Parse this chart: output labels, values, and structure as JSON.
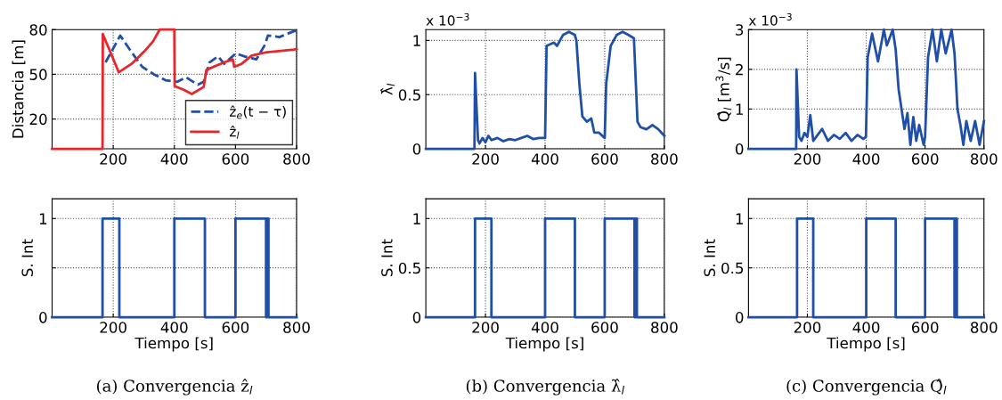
{
  "chart_data": [
    {
      "type": "line",
      "ylabel": "Distancia [m]",
      "xlim": [
        0,
        800
      ],
      "ylim": [
        0,
        80
      ],
      "xticks": [
        200,
        400,
        600,
        800
      ],
      "yticks": [
        20,
        50,
        80
      ],
      "grid": true,
      "legend": "bottom right",
      "series": [
        {
          "name": "ẑ$_{e}$(t − τ)",
          "color": "#1f4fa8",
          "line_style": "dashed",
          "x": [
            175,
            223,
            256,
            295,
            333,
            371,
            410,
            438,
            477,
            496,
            515,
            543,
            563,
            601,
            630,
            668,
            697,
            706,
            744,
            792,
            800
          ],
          "values": [
            58,
            76,
            66,
            55,
            50,
            46,
            45,
            48,
            43,
            45,
            58,
            62,
            57,
            64,
            62,
            60,
            70,
            76,
            75,
            79,
            79
          ]
        },
        {
          "name": "ẑ$_{l}$",
          "color": "#e8262a",
          "line_style": "solid",
          "x": [
            0,
            165,
            166,
            218,
            260,
            300,
            330,
            352,
            400,
            401,
            429,
            457,
            496,
            505,
            563,
            591,
            596,
            620,
            653,
            697,
            792,
            800
          ],
          "values": [
            0,
            0,
            77,
            51.4,
            57,
            65,
            72,
            80,
            80,
            42,
            39.8,
            36.8,
            41.5,
            53,
            58,
            60,
            55,
            57,
            62.6,
            64.6,
            66.6,
            67
          ]
        }
      ]
    },
    {
      "type": "line",
      "ylabel": "λ̂$_{l}$",
      "annotations": [
        "x 10$^{−3}$"
      ],
      "xlim": [
        0,
        800
      ],
      "ylim": [
        0,
        1.1
      ],
      "xticks": [
        200,
        400,
        600,
        800
      ],
      "yticks": [
        0,
        0.5,
        1
      ],
      "grid": true,
      "series": [
        {
          "color": "#1f4fa8",
          "x": [
            0,
            163,
            165,
            175,
            180,
            190,
            200,
            210,
            220,
            240,
            260,
            280,
            300,
            320,
            340,
            360,
            380,
            398,
            400,
            405,
            430,
            440,
            460,
            480,
            500,
            505,
            515,
            525,
            540,
            555,
            565,
            580,
            600,
            605,
            620,
            640,
            660,
            680,
            698,
            710,
            720,
            740,
            760,
            780,
            800
          ],
          "values": [
            0,
            0,
            0.7,
            0.08,
            0.05,
            0.1,
            0.06,
            0.12,
            0.08,
            0.1,
            0.07,
            0.09,
            0.08,
            0.1,
            0.12,
            0.09,
            0.1,
            0.1,
            0.1,
            0.95,
            0.98,
            0.95,
            1.05,
            1.08,
            1.05,
            1.0,
            0.6,
            0.3,
            0.25,
            0.28,
            0.15,
            0.15,
            0.1,
            0.6,
            0.95,
            1.05,
            1.08,
            1.05,
            1.02,
            0.25,
            0.2,
            0.18,
            0.22,
            0.18,
            0.12
          ]
        }
      ]
    },
    {
      "type": "line",
      "ylabel": "Q̂$_{l}$ [m$^{3}$/s]",
      "annotations": [
        "x 10$^{−3}$"
      ],
      "xlim": [
        0,
        800
      ],
      "ylim": [
        0,
        3
      ],
      "xticks": [
        200,
        400,
        600,
        800
      ],
      "yticks": [
        0,
        1,
        2,
        3
      ],
      "grid": true,
      "series": [
        {
          "color": "#1f4fa8",
          "x": [
            0,
            162,
            163,
            172,
            180,
            190,
            200,
            210,
            220,
            230,
            250,
            270,
            290,
            310,
            330,
            350,
            370,
            390,
            399,
            405,
            420,
            440,
            460,
            470,
            490,
            500,
            510,
            520,
            530,
            540,
            550,
            560,
            570,
            580,
            595,
            600,
            610,
            625,
            640,
            655,
            670,
            690,
            700,
            710,
            720,
            730,
            740,
            755,
            770,
            785,
            800
          ],
          "values": [
            0,
            0,
            2.0,
            0.3,
            0.2,
            0.4,
            0.3,
            0.85,
            0.2,
            0.3,
            0.5,
            0.2,
            0.35,
            0.25,
            0.4,
            0.2,
            0.35,
            0.25,
            0.3,
            2.3,
            2.9,
            2.2,
            3.0,
            2.6,
            3.0,
            2.5,
            1.5,
            1.0,
            0.5,
            0.9,
            0.1,
            0.8,
            0.2,
            0.6,
            0.1,
            0.3,
            2.3,
            3.0,
            2.2,
            3.0,
            2.4,
            3.0,
            2.4,
            1.0,
            0.6,
            0.1,
            0.7,
            0.2,
            0.7,
            0.1,
            0.7
          ]
        }
      ]
    },
    {
      "type": "step",
      "ylabel": "S. Int",
      "xlabel": "Tiempo [s]",
      "annotations": [
        "(a) Convergencia ẑ$_{l}$"
      ],
      "xlim": [
        0,
        800
      ],
      "ylim": [
        0,
        1.2
      ],
      "xticks": [
        200,
        400,
        600,
        800
      ],
      "yticks": [
        0,
        {
          "value": 0.5,
          "label": null
        },
        1
      ],
      "grid": true,
      "series": [
        {
          "color": "#1f4fa8",
          "x": [
            0,
            165,
            220,
            400,
            500,
            600,
            700,
            703,
            708,
            800
          ],
          "values": [
            0,
            1,
            0,
            1,
            0,
            1,
            0,
            1,
            0,
            0
          ]
        }
      ]
    },
    {
      "type": "step",
      "ylabel": "S. Int",
      "xlabel": "Tiempo [s]",
      "annotations": [
        "(b) Convergencia λ̂$_{l}$"
      ],
      "xlim": [
        0,
        800
      ],
      "ylim": [
        0,
        1.2
      ],
      "xticks": [
        200,
        400,
        600,
        800
      ],
      "yticks": [
        0,
        0.5,
        1
      ],
      "grid": true,
      "series": [
        {
          "color": "#1f4fa8",
          "x": [
            0,
            165,
            220,
            400,
            500,
            600,
            700,
            703,
            708,
            800
          ],
          "values": [
            0,
            1,
            0,
            1,
            0,
            1,
            0,
            1,
            0,
            0
          ]
        }
      ]
    },
    {
      "type": "step",
      "ylabel": "S. Int",
      "xlabel": "Tiempo [s]",
      "annotations": [
        "(c) Convergencia Q̂$_{l}$"
      ],
      "xlim": [
        0,
        800
      ],
      "ylim": [
        0,
        1.2
      ],
      "xticks": [
        200,
        400,
        600,
        800
      ],
      "yticks": [
        0,
        0.5,
        1
      ],
      "grid": true,
      "series": [
        {
          "color": "#1f4fa8",
          "x": [
            0,
            165,
            220,
            400,
            500,
            600,
            700,
            703,
            708,
            800
          ],
          "values": [
            0,
            1,
            0,
            1,
            0,
            1,
            0,
            1,
            0,
            0
          ]
        }
      ]
    }
  ]
}
